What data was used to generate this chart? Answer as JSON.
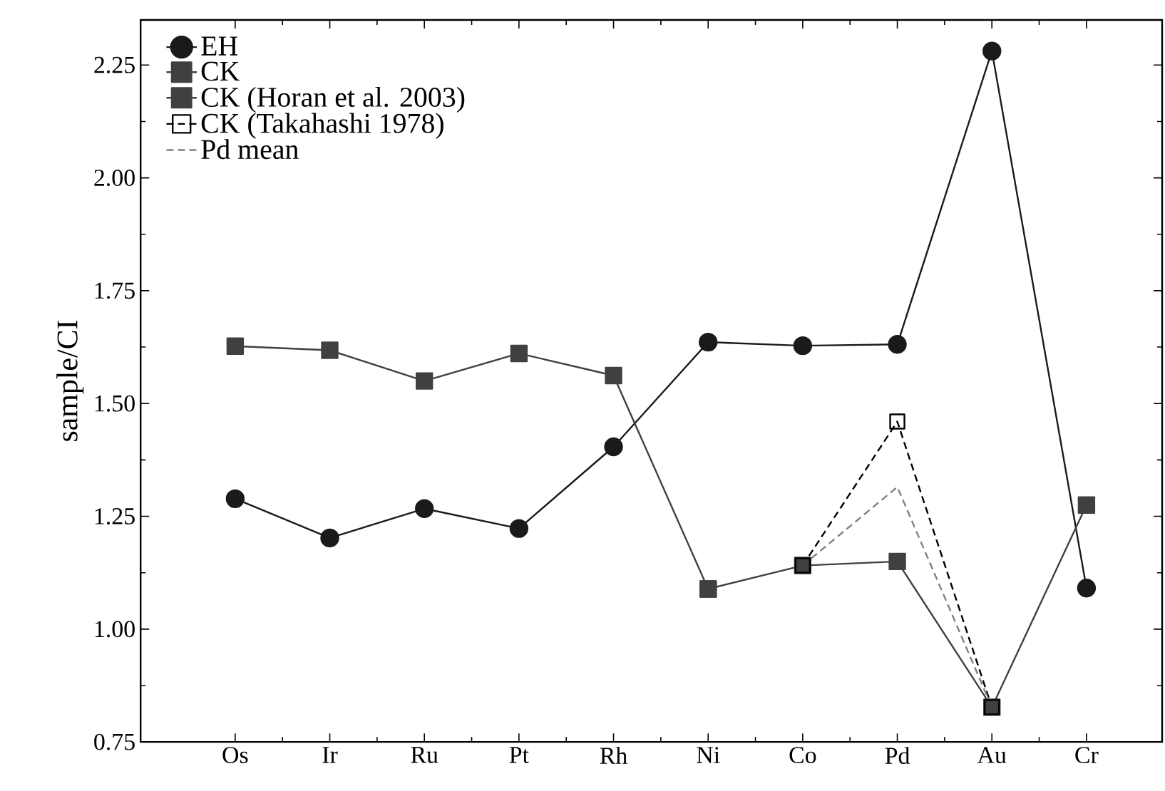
{
  "chart_data": {
    "type": "line",
    "ylabel": "sample/CI",
    "categories": [
      "Os",
      "Ir",
      "Ru",
      "Pt",
      "Rh",
      "Ni",
      "Co",
      "Pd",
      "Au",
      "Cr"
    ],
    "ylim": [
      0.75,
      2.35
    ],
    "yticks": [
      0.75,
      {
        "value": 1,
        "label": "1.00"
      },
      1.25,
      {
        "value": 1.5,
        "label": "1.50"
      },
      1.75,
      {
        "value": 2,
        "label": "2.00"
      },
      2.25
    ],
    "legend": "top left",
    "grid": false,
    "series": [
      {
        "name": "EH",
        "color": "#1a1a1a",
        "marker": "circle",
        "line_style": "solid",
        "values": [
          1.289,
          1.202,
          1.267,
          1.223,
          1.404,
          1.636,
          1.628,
          1.631,
          2.281,
          1.091
        ]
      },
      {
        "name": "CK",
        "color": "#404040",
        "marker": "square",
        "line_style": "solid",
        "values": [
          1.627,
          1.618,
          1.55,
          1.611,
          1.562,
          1.089,
          null,
          null,
          null,
          null
        ]
      },
      {
        "name": "CK (Horan et al. 2003)",
        "color": "#404040",
        "marker": "square",
        "line_style": "solid",
        "values": [
          null,
          null,
          null,
          null,
          null,
          1.089,
          1.141,
          1.15,
          0.827,
          1.275
        ]
      },
      {
        "name": "CK (Takahashi 1978)",
        "color": "#000000",
        "marker": "square",
        "line_style": "dashed",
        "values": [
          null,
          null,
          null,
          null,
          null,
          null,
          1.141,
          1.46,
          0.827,
          null
        ]
      },
      {
        "name": "Pd mean",
        "color": "#808080",
        "marker": "none",
        "line_style": "dashed",
        "values": [
          null,
          null,
          null,
          null,
          null,
          null,
          1.141,
          1.315,
          0.827,
          null
        ]
      }
    ]
  }
}
